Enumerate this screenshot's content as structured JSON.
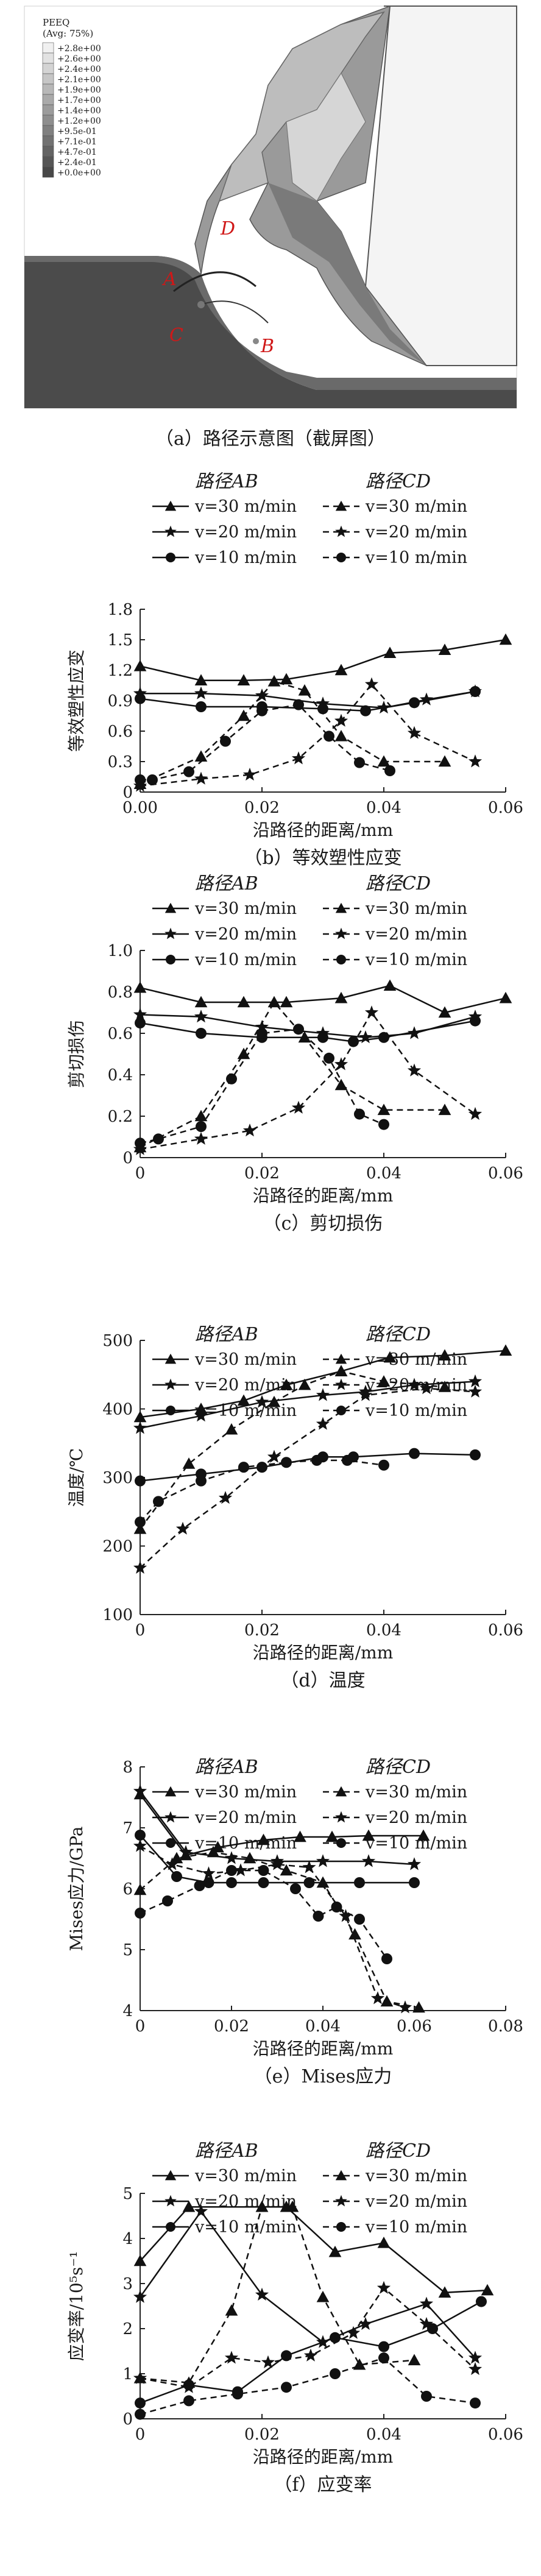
{
  "panel_a": {
    "caption": "（a）路径示意图（截屏图）",
    "legend_title": "PEEQ",
    "legend_subtitle": "(Avg: 75%)",
    "legend_values": [
      "+2.8e+00",
      "+2.6e+00",
      "+2.4e+00",
      "+2.1e+00",
      "+1.9e+00",
      "+1.7e+00",
      "+1.4e+00",
      "+1.2e+00",
      "+9.5e-01",
      "+7.1e-01",
      "+4.7e-01",
      "+2.4e-01",
      "+0.0e+00"
    ],
    "legend_colors": [
      "#f0f0f0",
      "#e2e2e2",
      "#d4d4d4",
      "#c6c6c6",
      "#b8b8b8",
      "#aaaaaa",
      "#9c9c9c",
      "#8e8e8e",
      "#808080",
      "#727272",
      "#646464",
      "#565656",
      "#484848"
    ],
    "labels": {
      "A": "A",
      "B": "B",
      "C": "C",
      "D": "D"
    }
  },
  "chart_data": [
    {
      "id": "b",
      "type": "line",
      "caption": "（b）等效塑性应变",
      "xlabel": "沿路径的距离/mm",
      "ylabel": "等效塑性应变",
      "xlim": [
        0,
        0.06
      ],
      "ylim": [
        0,
        1.8
      ],
      "xticks": [
        "0.00",
        "0.02",
        "0.04",
        "0.06"
      ],
      "yticks": [
        "0",
        "0.3",
        "0.6",
        "0.9",
        "1.2",
        "1.5",
        "1.8"
      ],
      "legend_headers": [
        "路径AB",
        "路径CD"
      ],
      "series": [
        {
          "name": "v=30 m/min",
          "path": "AB",
          "marker": "triangle",
          "x": [
            0,
            0.01,
            0.017,
            0.024,
            0.033,
            0.041,
            0.05,
            0.06
          ],
          "y": [
            1.24,
            1.1,
            1.1,
            1.11,
            1.2,
            1.37,
            1.4,
            1.5
          ]
        },
        {
          "name": "v=20 m/min",
          "path": "AB",
          "marker": "star",
          "x": [
            0,
            0.01,
            0.02,
            0.03,
            0.04,
            0.047,
            0.055
          ],
          "y": [
            0.97,
            0.97,
            0.95,
            0.87,
            0.83,
            0.91,
            0.99
          ]
        },
        {
          "name": "v=10 m/min",
          "path": "AB",
          "marker": "circle",
          "x": [
            0,
            0.01,
            0.02,
            0.03,
            0.037,
            0.045,
            0.055
          ],
          "y": [
            0.92,
            0.84,
            0.84,
            0.82,
            0.8,
            0.88,
            0.99
          ]
        },
        {
          "name": "v=30 m/min",
          "path": "CD",
          "marker": "triangle",
          "x": [
            0,
            0.01,
            0.017,
            0.022,
            0.027,
            0.033,
            0.04,
            0.05
          ],
          "y": [
            0.08,
            0.35,
            0.75,
            1.09,
            1.0,
            0.55,
            0.3,
            0.3
          ]
        },
        {
          "name": "v=20 m/min",
          "path": "CD",
          "marker": "star",
          "x": [
            0,
            0.01,
            0.018,
            0.026,
            0.033,
            0.038,
            0.045,
            0.055
          ],
          "y": [
            0.06,
            0.13,
            0.17,
            0.33,
            0.7,
            1.06,
            0.58,
            0.3
          ]
        },
        {
          "name": "v=10 m/min",
          "path": "CD",
          "marker": "circle",
          "x": [
            0,
            0.002,
            0.008,
            0.014,
            0.02,
            0.026,
            0.031,
            0.036,
            0.041
          ],
          "y": [
            0.12,
            0.12,
            0.2,
            0.5,
            0.8,
            0.86,
            0.55,
            0.29,
            0.21
          ]
        }
      ]
    },
    {
      "id": "c",
      "type": "line",
      "caption": "（c）剪切损伤",
      "xlabel": "沿路径的距离/mm",
      "ylabel": "剪切损伤",
      "xlim": [
        0,
        0.06
      ],
      "ylim": [
        0,
        1.0
      ],
      "xticks": [
        "0",
        "0.02",
        "0.04",
        "0.06"
      ],
      "yticks": [
        "0",
        "0.2",
        "0.4",
        "0.6",
        "0.8",
        "1.0"
      ],
      "legend_headers": [
        "路径AB",
        "路径CD"
      ],
      "series": [
        {
          "name": "v=30 m/min",
          "path": "AB",
          "marker": "triangle",
          "x": [
            0,
            0.01,
            0.017,
            0.024,
            0.033,
            0.041,
            0.05,
            0.06
          ],
          "y": [
            0.82,
            0.75,
            0.75,
            0.75,
            0.77,
            0.83,
            0.7,
            0.77
          ]
        },
        {
          "name": "v=20 m/min",
          "path": "AB",
          "marker": "star",
          "x": [
            0,
            0.01,
            0.02,
            0.03,
            0.037,
            0.045,
            0.055
          ],
          "y": [
            0.69,
            0.68,
            0.63,
            0.6,
            0.58,
            0.6,
            0.68
          ]
        },
        {
          "name": "v=10 m/min",
          "path": "AB",
          "marker": "circle",
          "x": [
            0,
            0.01,
            0.02,
            0.03,
            0.035,
            0.04,
            0.055
          ],
          "y": [
            0.65,
            0.6,
            0.58,
            0.58,
            0.56,
            0.58,
            0.66
          ]
        },
        {
          "name": "v=30 m/min",
          "path": "CD",
          "marker": "triangle",
          "x": [
            0,
            0.01,
            0.017,
            0.022,
            0.027,
            0.033,
            0.04,
            0.05
          ],
          "y": [
            0.05,
            0.2,
            0.5,
            0.75,
            0.58,
            0.35,
            0.23,
            0.23
          ]
        },
        {
          "name": "v=20 m/min",
          "path": "CD",
          "marker": "star",
          "x": [
            0,
            0.01,
            0.018,
            0.026,
            0.033,
            0.038,
            0.045,
            0.055
          ],
          "y": [
            0.04,
            0.09,
            0.13,
            0.24,
            0.45,
            0.7,
            0.42,
            0.21
          ]
        },
        {
          "name": "v=10 m/min",
          "path": "CD",
          "marker": "circle",
          "x": [
            0,
            0.003,
            0.01,
            0.015,
            0.02,
            0.026,
            0.031,
            0.036,
            0.04
          ],
          "y": [
            0.07,
            0.09,
            0.15,
            0.38,
            0.6,
            0.62,
            0.48,
            0.21,
            0.16
          ]
        }
      ]
    },
    {
      "id": "d",
      "type": "line",
      "caption": "（d）温度",
      "xlabel": "沿路径的距离/mm",
      "ylabel": "温度/℃",
      "xlim": [
        0,
        0.06
      ],
      "ylim": [
        100,
        500
      ],
      "xticks": [
        "0",
        "0.02",
        "0.04",
        "0.06"
      ],
      "yticks": [
        "100",
        "200",
        "300",
        "400",
        "500"
      ],
      "legend_headers": [
        "路径AB",
        "路径CD"
      ],
      "series": [
        {
          "name": "v=30 m/min",
          "path": "AB",
          "marker": "triangle",
          "x": [
            0,
            0.01,
            0.017,
            0.024,
            0.033,
            0.041,
            0.05,
            0.06
          ],
          "y": [
            388,
            400,
            412,
            435,
            455,
            475,
            478,
            485
          ]
        },
        {
          "name": "v=20 m/min",
          "path": "AB",
          "marker": "star",
          "x": [
            0,
            0.01,
            0.02,
            0.03,
            0.037,
            0.045,
            0.055
          ],
          "y": [
            372,
            390,
            410,
            420,
            425,
            435,
            440
          ]
        },
        {
          "name": "v=10 m/min",
          "path": "AB",
          "marker": "circle",
          "x": [
            0,
            0.01,
            0.02,
            0.03,
            0.035,
            0.045,
            0.055
          ],
          "y": [
            295,
            305,
            315,
            330,
            330,
            335,
            333
          ]
        },
        {
          "name": "v=30 m/min",
          "path": "CD",
          "marker": "triangle",
          "x": [
            0,
            0.008,
            0.015,
            0.022,
            0.027,
            0.033,
            0.04,
            0.05
          ],
          "y": [
            225,
            320,
            370,
            410,
            435,
            455,
            440,
            432
          ]
        },
        {
          "name": "v=20 m/min",
          "path": "CD",
          "marker": "star",
          "x": [
            0,
            0.007,
            0.014,
            0.022,
            0.03,
            0.037,
            0.047,
            0.055
          ],
          "y": [
            168,
            225,
            270,
            330,
            378,
            420,
            430,
            425
          ]
        },
        {
          "name": "v=10 m/min",
          "path": "CD",
          "marker": "circle",
          "x": [
            0,
            0.003,
            0.01,
            0.017,
            0.024,
            0.029,
            0.034,
            0.04
          ],
          "y": [
            235,
            265,
            295,
            315,
            322,
            325,
            325,
            318
          ]
        }
      ]
    },
    {
      "id": "e",
      "type": "line",
      "caption": "（e）Mises应力",
      "xlabel": "沿路径的距离/mm",
      "ylabel": "Mises应力/GPa",
      "xlim": [
        0,
        0.08
      ],
      "ylim": [
        4,
        8
      ],
      "xticks": [
        "0",
        "0.02",
        "0.04",
        "0.06",
        "0.08"
      ],
      "yticks": [
        "4",
        "5",
        "6",
        "7",
        "8"
      ],
      "legend_headers": [
        "路径AB",
        "路径CD"
      ],
      "series": [
        {
          "name": "v=30 m/min",
          "path": "AB",
          "marker": "triangle",
          "x": [
            0,
            0.01,
            0.017,
            0.027,
            0.035,
            0.042,
            0.05,
            0.062
          ],
          "y": [
            7.55,
            6.55,
            6.68,
            6.8,
            6.85,
            6.85,
            6.87,
            6.87
          ]
        },
        {
          "name": "v=20 m/min",
          "path": "AB",
          "marker": "star",
          "x": [
            0,
            0.01,
            0.02,
            0.03,
            0.04,
            0.05,
            0.06
          ],
          "y": [
            7.6,
            6.6,
            6.5,
            6.45,
            6.45,
            6.45,
            6.4
          ]
        },
        {
          "name": "v=10 m/min",
          "path": "AB",
          "marker": "circle",
          "x": [
            0,
            0.008,
            0.015,
            0.02,
            0.027,
            0.037,
            0.048,
            0.06
          ],
          "y": [
            6.88,
            6.2,
            6.1,
            6.1,
            6.1,
            6.1,
            6.1,
            6.1
          ]
        },
        {
          "name": "v=30 m/min",
          "path": "CD",
          "marker": "triangle",
          "x": [
            0,
            0.008,
            0.016,
            0.024,
            0.032,
            0.04,
            0.047,
            0.054,
            0.061
          ],
          "y": [
            5.98,
            6.5,
            6.6,
            6.5,
            6.3,
            6.1,
            5.25,
            4.15,
            4.05
          ]
        },
        {
          "name": "v=20 m/min",
          "path": "CD",
          "marker": "star",
          "x": [
            0,
            0.007,
            0.015,
            0.022,
            0.03,
            0.037,
            0.045,
            0.052,
            0.058
          ],
          "y": [
            6.7,
            6.4,
            6.25,
            6.3,
            6.4,
            6.35,
            5.55,
            4.2,
            4.05
          ]
        },
        {
          "name": "v=10 m/min",
          "path": "CD",
          "marker": "circle",
          "x": [
            0,
            0.006,
            0.013,
            0.02,
            0.027,
            0.034,
            0.039,
            0.043,
            0.048,
            0.054
          ],
          "y": [
            5.6,
            5.8,
            6.05,
            6.3,
            6.3,
            6.0,
            5.55,
            5.7,
            5.5,
            4.85
          ]
        }
      ]
    },
    {
      "id": "f",
      "type": "line",
      "caption": "（f）应变率",
      "xlabel": "沿路径的距离/mm",
      "ylabel": "应变率/10⁵s⁻¹",
      "xlim": [
        0,
        0.06
      ],
      "ylim": [
        0,
        5
      ],
      "xticks": [
        "0",
        "0.02",
        "0.04",
        "0.06"
      ],
      "yticks": [
        "0",
        "1",
        "2",
        "3",
        "4",
        "5"
      ],
      "legend_headers": [
        "路径AB",
        "路径CD"
      ],
      "series": [
        {
          "name": "v=30 m/min",
          "path": "AB",
          "marker": "triangle",
          "x": [
            0,
            0.008,
            0.02,
            0.024,
            0.032,
            0.04,
            0.05,
            0.057
          ],
          "y": [
            3.5,
            4.7,
            4.7,
            4.7,
            3.7,
            3.9,
            2.8,
            2.85
          ]
        },
        {
          "name": "v=20 m/min",
          "path": "AB",
          "marker": "star",
          "x": [
            0,
            0.01,
            0.02,
            0.03,
            0.037,
            0.047,
            0.055
          ],
          "y": [
            2.7,
            4.6,
            2.75,
            1.7,
            2.1,
            2.55,
            1.35
          ]
        },
        {
          "name": "v=10 m/min",
          "path": "AB",
          "marker": "circle",
          "x": [
            0,
            0.008,
            0.016,
            0.024,
            0.032,
            0.04,
            0.048,
            0.056
          ],
          "y": [
            0.35,
            0.75,
            0.6,
            1.4,
            1.8,
            1.6,
            2.0,
            2.6
          ]
        },
        {
          "name": "v=30 m/min",
          "path": "CD",
          "marker": "triangle",
          "x": [
            0,
            0.008,
            0.015,
            0.02,
            0.025,
            0.03,
            0.036,
            0.045
          ],
          "y": [
            0.9,
            0.8,
            2.4,
            4.7,
            4.7,
            2.7,
            1.2,
            1.3
          ]
        },
        {
          "name": "v=20 m/min",
          "path": "CD",
          "marker": "star",
          "x": [
            0,
            0.008,
            0.015,
            0.021,
            0.028,
            0.035,
            0.04,
            0.047,
            0.055
          ],
          "y": [
            0.9,
            0.7,
            1.35,
            1.25,
            1.4,
            1.9,
            2.9,
            2.1,
            1.1
          ]
        },
        {
          "name": "v=10 m/min",
          "path": "CD",
          "marker": "circle",
          "x": [
            0,
            0.008,
            0.016,
            0.024,
            0.032,
            0.04,
            0.047,
            0.055
          ],
          "y": [
            0.1,
            0.4,
            0.55,
            0.7,
            1.0,
            1.35,
            0.5,
            0.35
          ]
        }
      ]
    }
  ]
}
